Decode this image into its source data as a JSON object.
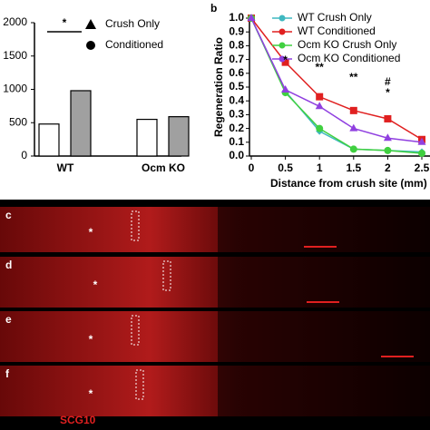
{
  "chart_data": [
    {
      "type": "bar",
      "categories": [
        "WT",
        "Ocm KO"
      ],
      "series": [
        {
          "name": "Crush Only",
          "color": "#ffffff",
          "values": [
            480,
            550
          ]
        },
        {
          "name": "Conditioned",
          "color": "#a0a0a0",
          "values": [
            980,
            590
          ]
        }
      ],
      "ylim": [
        0,
        2000
      ],
      "yticks": [
        0,
        500,
        1000,
        1500,
        2000
      ],
      "annotations": [
        "*"
      ]
    },
    {
      "type": "line",
      "panel_label": "b",
      "ylabel": "Regeneration Ratio",
      "xlabel": "Distance from crush site (mm)",
      "x": [
        0,
        0.5,
        1,
        1.5,
        2,
        2.5
      ],
      "series": [
        {
          "name": "WT Crush Only",
          "color": "#3fb8c0",
          "values": [
            1,
            0.47,
            0.18,
            0.05,
            0.04,
            0.03
          ]
        },
        {
          "name": "WT Conditioned",
          "color": "#e02020",
          "values": [
            1,
            0.68,
            0.43,
            0.33,
            0.27,
            0.12
          ]
        },
        {
          "name": "Ocm KO Crush Only",
          "color": "#40d040",
          "values": [
            1,
            0.46,
            0.2,
            0.05,
            0.04,
            0.02
          ]
        },
        {
          "name": "Ocm KO Conditioned",
          "color": "#9040e0",
          "values": [
            1,
            0.48,
            0.36,
            0.2,
            0.13,
            0.1
          ]
        }
      ],
      "xlim": [
        0,
        2.5
      ],
      "xticks": [
        0,
        0.5,
        1,
        1.5,
        2,
        2.5
      ],
      "ylim": [
        0,
        1
      ],
      "yticks": [
        {
          "value": 0,
          "label": "0.0"
        },
        {
          "value": 0.1,
          "label": "0.1"
        },
        {
          "value": 0.2,
          "label": "0.2"
        },
        {
          "value": 0.3,
          "label": "0.3"
        },
        {
          "value": 0.4,
          "label": "0.4"
        },
        {
          "value": 0.5,
          "label": "0.5"
        },
        {
          "value": 0.6,
          "label": "0.6"
        },
        {
          "value": 0.7,
          "label": "0.7"
        },
        {
          "value": 0.8,
          "label": "0.8"
        },
        {
          "value": 0.9,
          "label": "0.9"
        },
        {
          "value": 1,
          "label": "1.0"
        }
      ],
      "annotations": [
        "*",
        "**",
        "**",
        "#",
        "*"
      ]
    }
  ],
  "panels": [
    {
      "label": "c",
      "marker": "*"
    },
    {
      "label": "d",
      "marker": "*"
    },
    {
      "label": "e",
      "marker": "*"
    },
    {
      "label": "f",
      "marker": "*"
    }
  ],
  "stain_label": "SCG10"
}
